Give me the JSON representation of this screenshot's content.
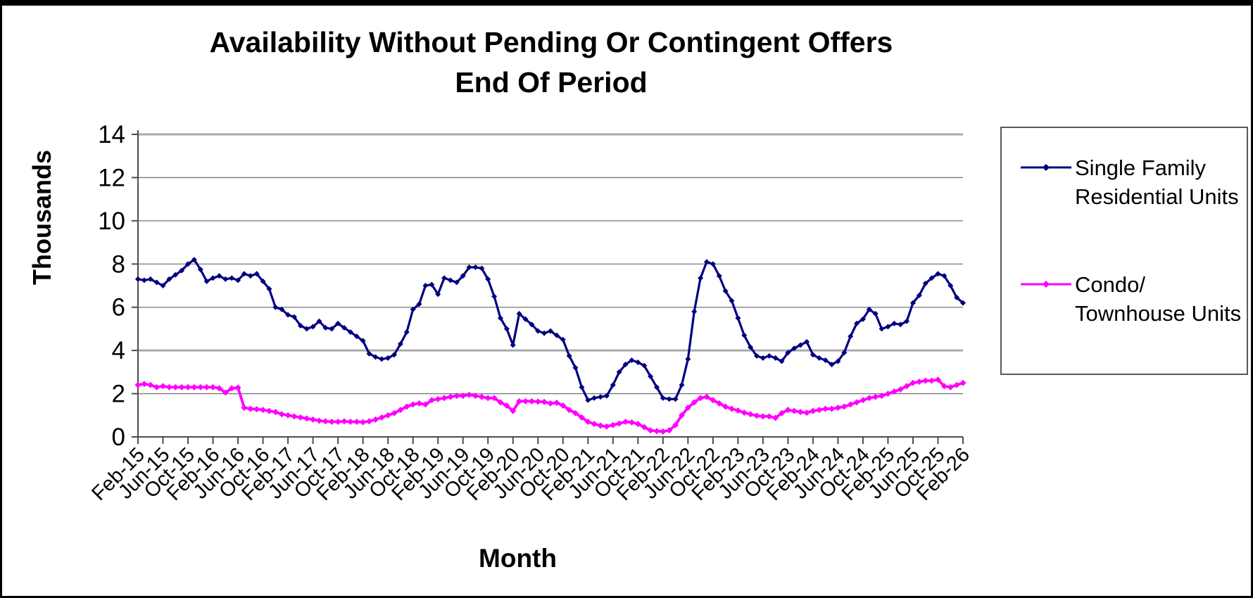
{
  "header": {
    "title_line1": "Availability Without Pending Or Contingent Offers",
    "title_line2": "End Of Period"
  },
  "axes": {
    "y_title": "Thousands",
    "x_title": "Month"
  },
  "legend": {
    "items": [
      {
        "label": "Single Family\nResidential Units",
        "color": "#000080"
      },
      {
        "label": "Condo/\nTownhouse Units",
        "color": "#FF00FF"
      }
    ]
  },
  "chart_data": {
    "type": "line",
    "title": "Availability Without Pending Or Contingent Offers End Of Period",
    "xlabel": "Month",
    "ylabel": "Thousands",
    "ylim": [
      0,
      14
    ],
    "y_step": 2,
    "x_tick_step": 4,
    "grid": true,
    "legend_position": "right",
    "marker": "diamond",
    "emphasized_gridlines": [
      4,
      14
    ],
    "categories": [
      "Feb-15",
      "Mar-15",
      "Apr-15",
      "May-15",
      "Jun-15",
      "Jul-15",
      "Aug-15",
      "Sep-15",
      "Oct-15",
      "Nov-15",
      "Dec-15",
      "Jan-16",
      "Feb-16",
      "Mar-16",
      "Apr-16",
      "May-16",
      "Jun-16",
      "Jul-16",
      "Aug-16",
      "Sep-16",
      "Oct-16",
      "Nov-16",
      "Dec-16",
      "Jan-17",
      "Feb-17",
      "Mar-17",
      "Apr-17",
      "May-17",
      "Jun-17",
      "Jul-17",
      "Aug-17",
      "Sep-17",
      "Oct-17",
      "Nov-17",
      "Dec-17",
      "Jan-18",
      "Feb-18",
      "Mar-18",
      "Apr-18",
      "May-18",
      "Jun-18",
      "Jul-18",
      "Aug-18",
      "Sep-18",
      "Oct-18",
      "Nov-18",
      "Dec-18",
      "Jan-19",
      "Feb-19",
      "Mar-19",
      "Apr-19",
      "May-19",
      "Jun-19",
      "Jul-19",
      "Aug-19",
      "Sep-19",
      "Oct-19",
      "Nov-19",
      "Dec-19",
      "Jan-20",
      "Feb-20",
      "Mar-20",
      "Apr-20",
      "May-20",
      "Jun-20",
      "Jul-20",
      "Aug-20",
      "Sep-20",
      "Oct-20",
      "Nov-20",
      "Dec-20",
      "Jan-21",
      "Feb-21",
      "Mar-21",
      "Apr-21",
      "May-21",
      "Jun-21",
      "Jul-21",
      "Aug-21",
      "Sep-21",
      "Oct-21",
      "Nov-21",
      "Dec-21",
      "Jan-22",
      "Feb-22",
      "Mar-22",
      "Apr-22",
      "May-22",
      "Jun-22",
      "Jul-22",
      "Aug-22",
      "Sep-22",
      "Oct-22",
      "Nov-22",
      "Dec-22",
      "Jan-23",
      "Feb-23",
      "Mar-23",
      "Apr-23",
      "May-23",
      "Jun-23",
      "Jul-23",
      "Aug-23",
      "Sep-23",
      "Oct-23",
      "Nov-23",
      "Dec-23",
      "Jan-24",
      "Feb-24",
      "Mar-24",
      "Apr-24",
      "May-24",
      "Jun-24",
      "Jul-24",
      "Aug-24",
      "Sep-24",
      "Oct-24",
      "Nov-24",
      "Dec-24",
      "Jan-25",
      "Feb-25",
      "Mar-25",
      "Apr-25",
      "May-25",
      "Jun-25",
      "Jul-25",
      "Aug-25",
      "Sep-25",
      "Oct-25",
      "Nov-25",
      "Dec-25",
      "Jan-26",
      "Feb-26"
    ],
    "series": [
      {
        "name": "Single Family Residential Units",
        "color": "#000080",
        "values": [
          7.3,
          7.25,
          7.3,
          7.15,
          7.0,
          7.3,
          7.5,
          7.7,
          8.0,
          8.2,
          7.75,
          7.2,
          7.35,
          7.45,
          7.3,
          7.35,
          7.25,
          7.55,
          7.45,
          7.55,
          7.2,
          6.85,
          6.0,
          5.9,
          5.65,
          5.55,
          5.15,
          5.0,
          5.1,
          5.35,
          5.05,
          5.0,
          5.25,
          5.05,
          4.85,
          4.65,
          4.45,
          3.85,
          3.7,
          3.6,
          3.65,
          3.8,
          4.3,
          4.85,
          5.9,
          6.15,
          7.0,
          7.05,
          6.6,
          7.35,
          7.25,
          7.15,
          7.45,
          7.85,
          7.85,
          7.8,
          7.3,
          6.5,
          5.5,
          5.0,
          4.25,
          5.7,
          5.45,
          5.2,
          4.9,
          4.8,
          4.9,
          4.7,
          4.5,
          3.75,
          3.2,
          2.3,
          1.7,
          1.8,
          1.85,
          1.9,
          2.4,
          3.0,
          3.35,
          3.55,
          3.45,
          3.3,
          2.8,
          2.3,
          1.8,
          1.75,
          1.75,
          2.4,
          3.6,
          5.8,
          7.35,
          8.1,
          8.0,
          7.45,
          6.75,
          6.3,
          5.5,
          4.7,
          4.15,
          3.75,
          3.65,
          3.75,
          3.65,
          3.5,
          3.9,
          4.1,
          4.25,
          4.4,
          3.8,
          3.65,
          3.55,
          3.35,
          3.5,
          3.9,
          4.65,
          5.25,
          5.45,
          5.9,
          5.7,
          5.0,
          5.1,
          5.25,
          5.2,
          5.35,
          6.2,
          6.55,
          7.1,
          7.35,
          7.55,
          7.45,
          7.0,
          6.45,
          6.2
        ]
      },
      {
        "name": "Condo/Townhouse Units",
        "color": "#FF00FF",
        "values": [
          2.4,
          2.45,
          2.4,
          2.3,
          2.35,
          2.3,
          2.3,
          2.3,
          2.3,
          2.3,
          2.3,
          2.3,
          2.3,
          2.25,
          2.05,
          2.25,
          2.28,
          1.35,
          1.3,
          1.28,
          1.25,
          1.2,
          1.15,
          1.05,
          1.0,
          0.95,
          0.9,
          0.85,
          0.8,
          0.75,
          0.72,
          0.7,
          0.7,
          0.72,
          0.7,
          0.7,
          0.68,
          0.72,
          0.8,
          0.9,
          1.0,
          1.1,
          1.25,
          1.4,
          1.5,
          1.55,
          1.5,
          1.7,
          1.75,
          1.8,
          1.85,
          1.9,
          1.9,
          1.95,
          1.9,
          1.85,
          1.8,
          1.8,
          1.6,
          1.45,
          1.2,
          1.65,
          1.65,
          1.65,
          1.63,
          1.62,
          1.55,
          1.58,
          1.45,
          1.25,
          1.1,
          0.9,
          0.7,
          0.6,
          0.52,
          0.48,
          0.55,
          0.62,
          0.7,
          0.67,
          0.6,
          0.45,
          0.3,
          0.27,
          0.25,
          0.3,
          0.55,
          1.0,
          1.35,
          1.6,
          1.8,
          1.85,
          1.7,
          1.55,
          1.4,
          1.3,
          1.22,
          1.12,
          1.05,
          0.98,
          0.95,
          0.95,
          0.88,
          1.1,
          1.25,
          1.2,
          1.15,
          1.12,
          1.2,
          1.25,
          1.3,
          1.3,
          1.35,
          1.4,
          1.5,
          1.6,
          1.7,
          1.8,
          1.85,
          1.9,
          2.0,
          2.1,
          2.2,
          2.35,
          2.5,
          2.55,
          2.6,
          2.6,
          2.65,
          2.35,
          2.3,
          2.4,
          2.5
        ]
      }
    ]
  }
}
